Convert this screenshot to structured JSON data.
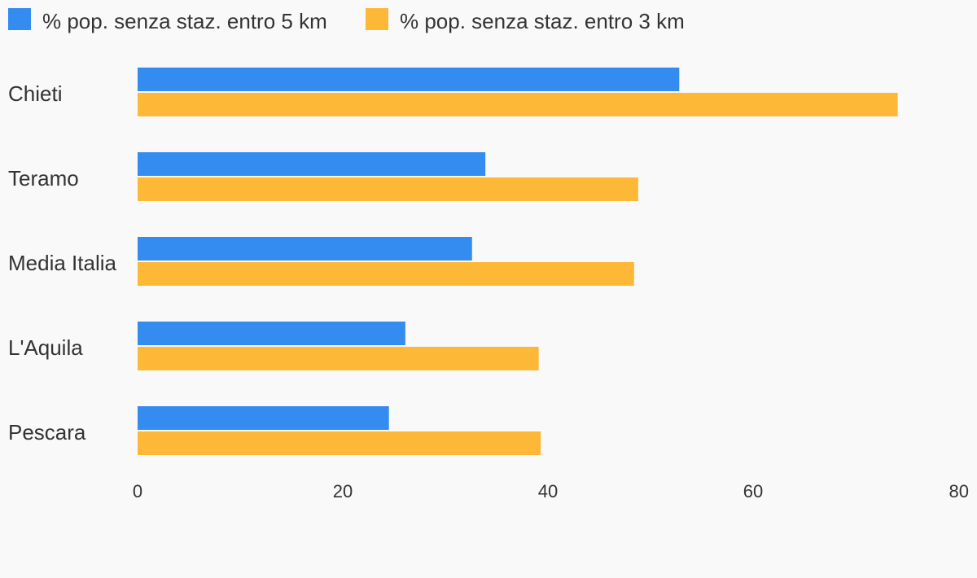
{
  "chart_data": {
    "type": "bar",
    "orientation": "horizontal",
    "categories": [
      "Chieti",
      "Teramo",
      "Media Italia",
      "L'Aquila",
      "Pescara"
    ],
    "series": [
      {
        "name": "% pop. senza staz. entro 5 km",
        "color": "#348cf0",
        "values": [
          52.8,
          33.9,
          32.6,
          26.1,
          24.5
        ]
      },
      {
        "name": "% pop. senza staz. entro 3 km",
        "color": "#feb838",
        "values": [
          74.1,
          48.8,
          48.4,
          39.1,
          39.3
        ]
      }
    ],
    "xlim": [
      0,
      80
    ],
    "xticks": [
      0,
      20,
      40,
      60,
      80
    ],
    "legend_position": "top-left",
    "grid": false
  }
}
